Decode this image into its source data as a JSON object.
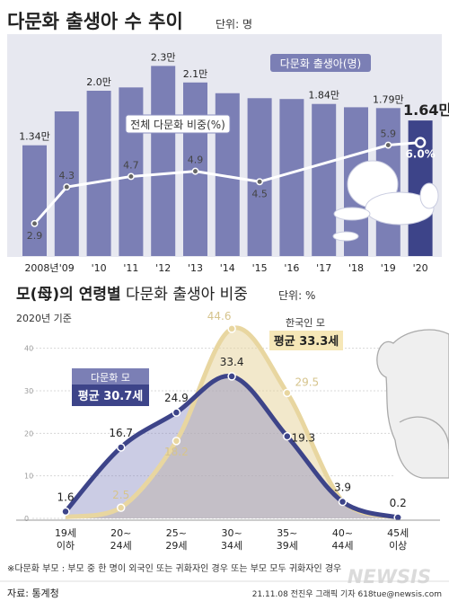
{
  "chart_data": [
    {
      "type": "bar",
      "title": "다문화 출생아 수 추이",
      "unit": "단위: 명",
      "categories": [
        "2008년",
        "'09",
        "'10",
        "'11",
        "'12",
        "'13",
        "'14",
        "'15",
        "'16",
        "'17",
        "'18",
        "'19",
        "'20"
      ],
      "series": [
        {
          "name": "다문화 출생아(명)",
          "values": [
            13400,
            17500,
            20000,
            20400,
            23000,
            21000,
            19700,
            19100,
            19000,
            18400,
            18000,
            17900,
            16400
          ],
          "value_labels": [
            "1.34만",
            "",
            "2.0만",
            "",
            "2.3만",
            "2.1만",
            "",
            "",
            "",
            "1.84만",
            "",
            "1.79만",
            "1.64만"
          ],
          "color": "#7b7fb5",
          "highlight_color": "#3d4489"
        },
        {
          "name": "전체 다문화 비중(%)",
          "values": [
            2.9,
            4.3,
            null,
            4.7,
            null,
            4.9,
            null,
            4.5,
            null,
            null,
            null,
            5.9,
            6.0
          ],
          "value_labels": [
            "2.9",
            "4.3",
            "",
            "4.7",
            "",
            "4.9",
            "",
            "4.5",
            "",
            "",
            "",
            "5.9",
            "6.0%"
          ],
          "color": "#ffffff"
        }
      ]
    },
    {
      "type": "area",
      "title": "모(母)의 연령별",
      "title_rest": "다문화 출생아 비중",
      "unit": "단위: %",
      "subtitle": "2020년 기준",
      "categories": [
        [
          "19세",
          "이하"
        ],
        [
          "20~",
          "24세"
        ],
        [
          "25~",
          "29세"
        ],
        [
          "30~",
          "34세"
        ],
        [
          "35~",
          "39세"
        ],
        [
          "40~",
          "44세"
        ],
        [
          "45세",
          "이상"
        ]
      ],
      "ylim": [
        0,
        45
      ],
      "yticks": [
        "0",
        "10",
        "20",
        "30",
        "40"
      ],
      "series": [
        {
          "name": "다문화 모",
          "annotation": "평균 30.7세",
          "values": [
            1.6,
            16.7,
            24.9,
            33.4,
            19.3,
            3.9,
            0.2
          ],
          "color": "#3d4489"
        },
        {
          "name": "한국인 모",
          "annotation": "평균 33.3세",
          "values": [
            0.3,
            2.5,
            18.2,
            44.6,
            29.5,
            4.0,
            0.2
          ],
          "value_labels": [
            "",
            "2.5",
            "18.2",
            "44.6",
            "29.5",
            "",
            ""
          ],
          "color": "#e8d6a0"
        }
      ]
    }
  ],
  "footer": {
    "note": "※다문화 부모 : 부모 중 한 명이 외국인 또는 귀화자인 경우 또는 부모 모두 귀화자인 경우",
    "source": "자료: 통계청",
    "credit": "21.11.08 전진우 그래픽 기자 618tue@newsis.com",
    "logo": "NEWSIS"
  }
}
